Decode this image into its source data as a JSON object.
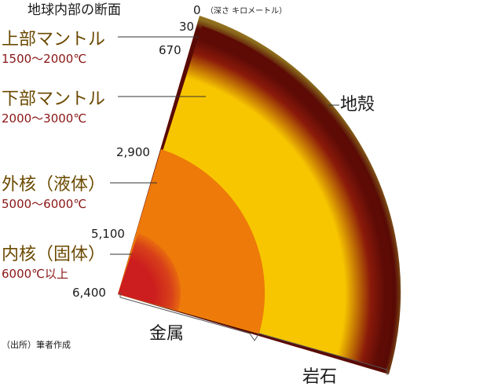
{
  "title": "地球内部の断面",
  "depth_unit": "（深さ キロメートル）",
  "depth_labels": {
    "surface": "0",
    "crust_base": "30",
    "upper_mantle_base": "670",
    "core_mantle_boundary": "2,900",
    "inner_core_boundary": "5,100",
    "center": "6,400"
  },
  "layers": {
    "upper_mantle": {
      "name": "上部マントル",
      "temperature": "1500～2000℃"
    },
    "lower_mantle": {
      "name": "下部マントル",
      "temperature": "2000～3000℃"
    },
    "outer_core": {
      "name": "外核（液体）",
      "temperature": "5000～6000℃"
    },
    "inner_core": {
      "name": "内核（固体）",
      "temperature": "6000℃以上"
    },
    "crust": {
      "name": "地殻"
    }
  },
  "composition": {
    "metal": "金属",
    "rock": "岩石"
  },
  "source": "（出所）筆者作成",
  "colors": {
    "crust": "#8f6b1a",
    "upper_mantle": "#6b0e08",
    "lower_mantle": "#f7c600",
    "outer_core": "#ee7a0a",
    "inner_core": "#cc1e1e"
  }
}
